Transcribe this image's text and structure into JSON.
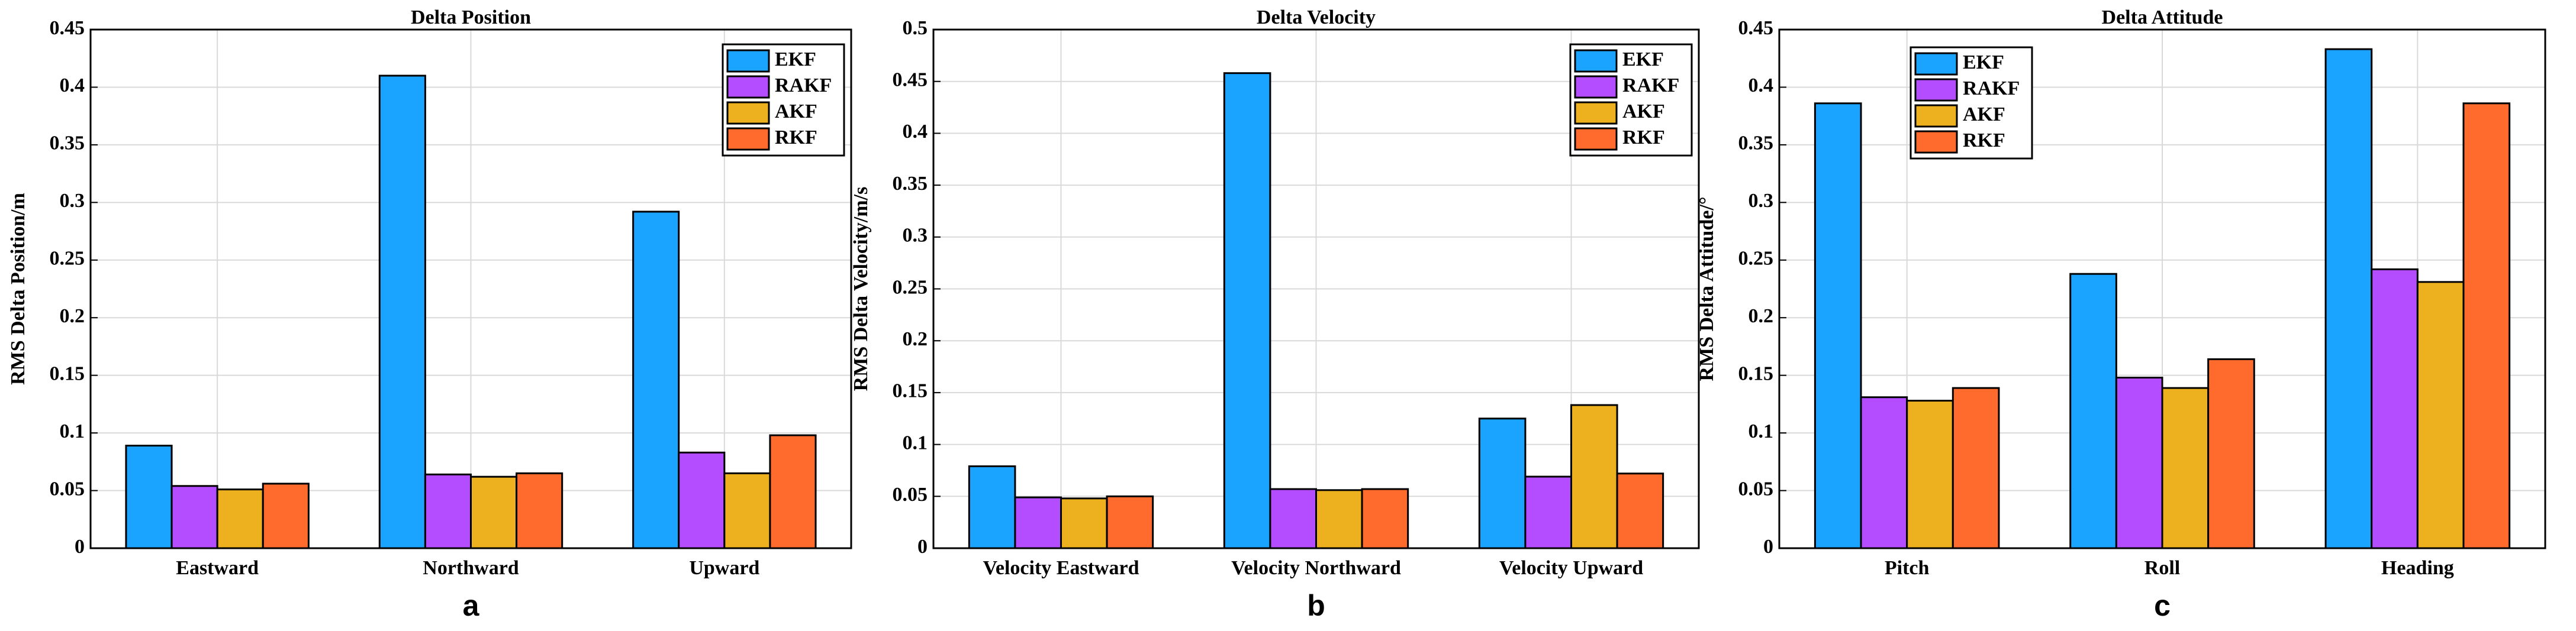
{
  "chart_data": [
    {
      "type": "bar",
      "title": "Delta Position",
      "ylabel": "RMS Delta Position/m",
      "caption": "a",
      "categories": [
        "Eastward",
        "Northward",
        "Upward"
      ],
      "series": [
        {
          "name": "EKF",
          "color": "#1aa3ff",
          "values": [
            0.089,
            0.41,
            0.292
          ]
        },
        {
          "name": "RAKF",
          "color": "#b44dff",
          "values": [
            0.054,
            0.064,
            0.083
          ]
        },
        {
          "name": "AKF",
          "color": "#edb120",
          "values": [
            0.051,
            0.062,
            0.065
          ]
        },
        {
          "name": "RKF",
          "color": "#ff6b2d",
          "values": [
            0.056,
            0.065,
            0.098
          ]
        }
      ],
      "ylim": [
        0,
        0.45
      ],
      "yticks": [
        0,
        0.05,
        0.1,
        0.15,
        0.2,
        0.25,
        0.3,
        0.35,
        0.4,
        0.45
      ],
      "grid": true,
      "legend": "upper right"
    },
    {
      "type": "bar",
      "title": "Delta Velocity",
      "ylabel": "RMS Delta Velocity/m/s",
      "caption": "b",
      "categories": [
        "Velocity Eastward",
        "Velocity Northward",
        "Velocity Upward"
      ],
      "series": [
        {
          "name": "EKF",
          "color": "#1aa3ff",
          "values": [
            0.079,
            0.458,
            0.125
          ]
        },
        {
          "name": "RAKF",
          "color": "#b44dff",
          "values": [
            0.049,
            0.057,
            0.069
          ]
        },
        {
          "name": "AKF",
          "color": "#edb120",
          "values": [
            0.048,
            0.056,
            0.138
          ]
        },
        {
          "name": "RKF",
          "color": "#ff6b2d",
          "values": [
            0.05,
            0.057,
            0.072
          ]
        }
      ],
      "ylim": [
        0,
        0.5
      ],
      "yticks": [
        0,
        0.05,
        0.1,
        0.15,
        0.2,
        0.25,
        0.3,
        0.35,
        0.4,
        0.45,
        0.5
      ],
      "grid": true,
      "legend": "upper right"
    },
    {
      "type": "bar",
      "title": "Delta Attitude",
      "ylabel": "RMS Delta Attitude/°",
      "caption": "c",
      "categories": [
        "Pitch",
        "Roll",
        "Heading"
      ],
      "series": [
        {
          "name": "EKF",
          "color": "#1aa3ff",
          "values": [
            0.386,
            0.238,
            0.433
          ]
        },
        {
          "name": "RAKF",
          "color": "#b44dff",
          "values": [
            0.131,
            0.148,
            0.242
          ]
        },
        {
          "name": "AKF",
          "color": "#edb120",
          "values": [
            0.128,
            0.139,
            0.231
          ]
        },
        {
          "name": "RKF",
          "color": "#ff6b2d",
          "values": [
            0.139,
            0.164,
            0.386
          ]
        }
      ],
      "ylim": [
        0,
        0.45
      ],
      "yticks": [
        0,
        0.05,
        0.1,
        0.15,
        0.2,
        0.25,
        0.3,
        0.35,
        0.4,
        0.45
      ],
      "grid": true,
      "legend": "upper left"
    }
  ]
}
